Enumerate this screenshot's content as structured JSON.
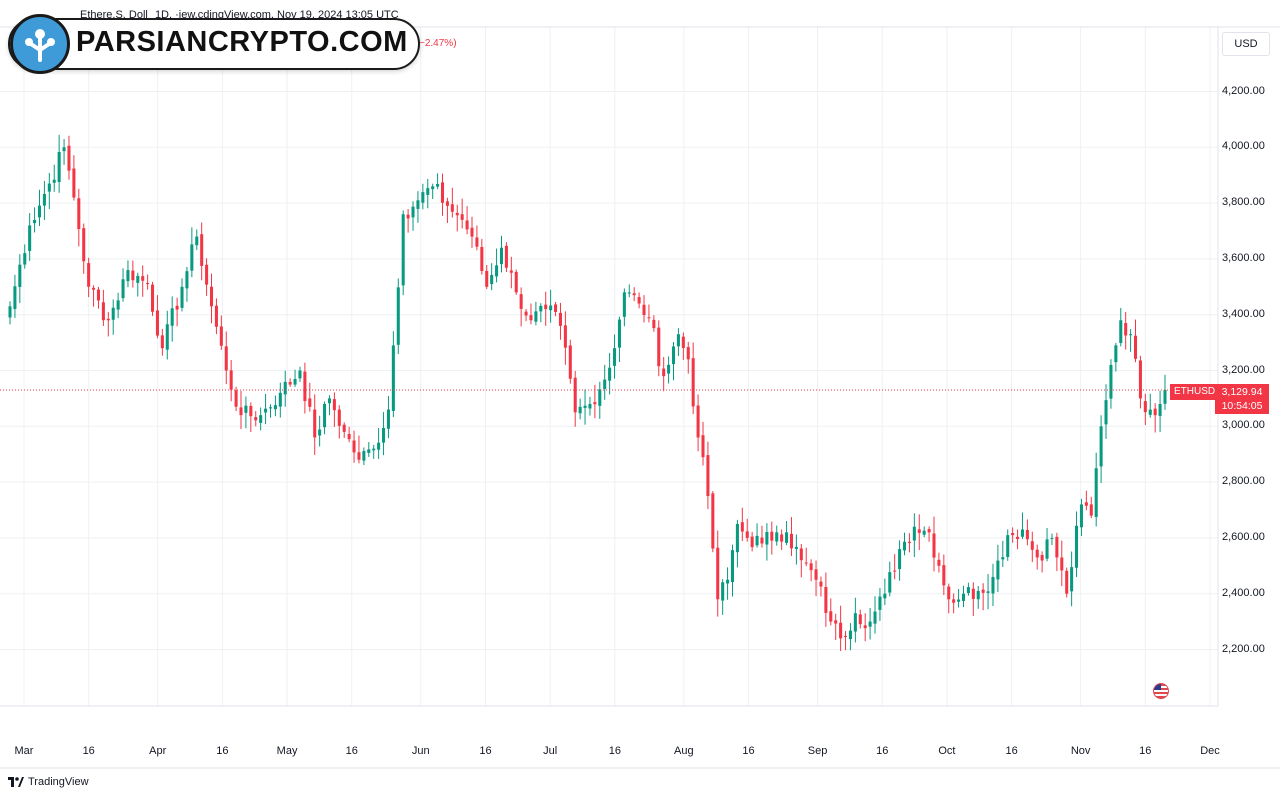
{
  "header": {
    "symbol_text": "Ethere.S. Doll",
    "info_text": "1D, ·iew.cdingView.com, Nov 19, 2024 13:05 UTC",
    "change_text": "−2.47%)"
  },
  "watermark": {
    "text": "PARSIANCRYPTO.COM"
  },
  "currency_label": "USD",
  "price_tag": {
    "symbol": "ETHUSD",
    "price": "3,129.94",
    "countdown": "10:54:05"
  },
  "footer": {
    "brand": "TradingView"
  },
  "colors": {
    "up": "#089981",
    "down": "#f23645",
    "grid": "#eef0f3"
  },
  "chart_data": {
    "type": "candlestick",
    "ylim": [
      2050,
      4300
    ],
    "y_ticks": [
      2200,
      2400,
      2600,
      2800,
      3000,
      3200,
      3400,
      3600,
      3800,
      4000,
      4200
    ],
    "y_tick_labels": [
      "2,200.00",
      "2,400.00",
      "2,600.00",
      "2,800.00",
      "3,000.00",
      "3,200.00",
      "3,400.00",
      "3,600.00",
      "3,800.00",
      "4,000.00",
      "4,200.00"
    ],
    "x_ticks": [
      {
        "label": "Mar",
        "day": 0
      },
      {
        "label": "16",
        "day": 15
      },
      {
        "label": "Apr",
        "day": 31
      },
      {
        "label": "16",
        "day": 46
      },
      {
        "label": "May",
        "day": 61
      },
      {
        "label": "16",
        "day": 76
      },
      {
        "label": "Jun",
        "day": 92
      },
      {
        "label": "16",
        "day": 107
      },
      {
        "label": "Jul",
        "day": 122
      },
      {
        "label": "16",
        "day": 137
      },
      {
        "label": "Aug",
        "day": 153
      },
      {
        "label": "16",
        "day": 168
      },
      {
        "label": "Sep",
        "day": 184
      },
      {
        "label": "16",
        "day": 199
      },
      {
        "label": "Oct",
        "day": 214
      },
      {
        "label": "16",
        "day": 229
      },
      {
        "label": "Nov",
        "day": 245
      },
      {
        "label": "16",
        "day": 260
      },
      {
        "label": "Dec",
        "day": 275
      }
    ],
    "last_price": 3129.94,
    "close_anchors": [
      [
        0,
        3430
      ],
      [
        4,
        3720
      ],
      [
        8,
        3870
      ],
      [
        11,
        4000
      ],
      [
        13,
        3820
      ],
      [
        16,
        3500
      ],
      [
        20,
        3380
      ],
      [
        24,
        3560
      ],
      [
        28,
        3510
      ],
      [
        31,
        3280
      ],
      [
        35,
        3500
      ],
      [
        38,
        3680
      ],
      [
        41,
        3430
      ],
      [
        44,
        3200
      ],
      [
        47,
        3040
      ],
      [
        51,
        3040
      ],
      [
        55,
        3120
      ],
      [
        59,
        3200
      ],
      [
        62,
        2960
      ],
      [
        65,
        3100
      ],
      [
        68,
        2980
      ],
      [
        71,
        2880
      ],
      [
        74,
        2920
      ],
      [
        77,
        3060
      ],
      [
        80,
        3760
      ],
      [
        83,
        3810
      ],
      [
        86,
        3860
      ],
      [
        89,
        3790
      ],
      [
        92,
        3740
      ],
      [
        94,
        3680
      ],
      [
        97,
        3500
      ],
      [
        100,
        3640
      ],
      [
        103,
        3480
      ],
      [
        106,
        3380
      ],
      [
        109,
        3420
      ],
      [
        112,
        3360
      ],
      [
        115,
        3050
      ],
      [
        118,
        3080
      ],
      [
        122,
        3210
      ],
      [
        125,
        3480
      ],
      [
        128,
        3440
      ],
      [
        130,
        3390
      ],
      [
        133,
        3180
      ],
      [
        136,
        3330
      ],
      [
        138,
        3240
      ],
      [
        140,
        2960
      ],
      [
        142,
        2750
      ],
      [
        144,
        2380
      ],
      [
        146,
        2450
      ],
      [
        148,
        2650
      ],
      [
        150,
        2600
      ],
      [
        153,
        2580
      ],
      [
        156,
        2620
      ],
      [
        158,
        2620
      ],
      [
        161,
        2520
      ],
      [
        164,
        2450
      ],
      [
        167,
        2300
      ],
      [
        169,
        2240
      ],
      [
        172,
        2330
      ],
      [
        175,
        2300
      ],
      [
        178,
        2400
      ],
      [
        181,
        2560
      ],
      [
        184,
        2640
      ],
      [
        187,
        2620
      ],
      [
        189,
        2500
      ],
      [
        191,
        2380
      ],
      [
        194,
        2400
      ],
      [
        197,
        2410
      ],
      [
        200,
        2460
      ],
      [
        203,
        2610
      ],
      [
        206,
        2630
      ],
      [
        209,
        2530
      ],
      [
        212,
        2600
      ],
      [
        215,
        2400
      ],
      [
        218,
        2720
      ],
      [
        220,
        2680
      ],
      [
        222,
        3000
      ],
      [
        224,
        3220
      ],
      [
        226,
        3380
      ],
      [
        228,
        3330
      ],
      [
        230,
        3100
      ],
      [
        232,
        3060
      ],
      [
        234,
        3080
      ],
      [
        235,
        3130
      ]
    ]
  }
}
